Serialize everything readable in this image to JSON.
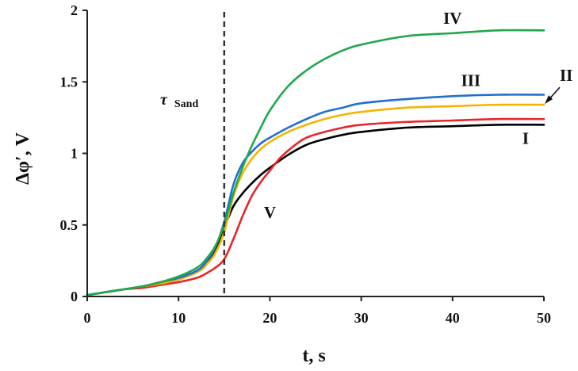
{
  "chart_data": {
    "type": "line",
    "xlabel": "t, s",
    "ylabel": "Δφ′, V",
    "xlim": [
      0,
      50
    ],
    "ylim": [
      0,
      2
    ],
    "x_ticks": [
      "0",
      "10",
      "20",
      "30",
      "40",
      "50"
    ],
    "y_ticks": [
      "0",
      "0.5",
      "1",
      "1.5",
      "2"
    ],
    "grid": false,
    "vline": {
      "x": 15,
      "label_main": "τ",
      "label_sub": "Sand",
      "style": "dashed"
    },
    "series": [
      {
        "name": "I",
        "color": "#000000",
        "x": [
          0,
          2,
          4,
          6,
          8,
          10,
          12,
          13,
          14,
          15,
          16,
          17,
          18,
          19,
          20,
          22,
          24,
          26,
          28,
          30,
          35,
          40,
          45,
          50
        ],
        "y": [
          0.01,
          0.03,
          0.05,
          0.07,
          0.09,
          0.12,
          0.17,
          0.22,
          0.32,
          0.48,
          0.63,
          0.72,
          0.79,
          0.85,
          0.9,
          0.99,
          1.06,
          1.1,
          1.13,
          1.15,
          1.18,
          1.19,
          1.2,
          1.2
        ]
      },
      {
        "name": "II",
        "color": "#f5b400",
        "x": [
          0,
          2,
          4,
          6,
          8,
          10,
          12,
          13,
          14,
          15,
          16,
          17,
          18,
          19,
          20,
          22,
          24,
          26,
          28,
          30,
          35,
          40,
          45,
          50
        ],
        "y": [
          0.01,
          0.03,
          0.05,
          0.07,
          0.09,
          0.12,
          0.17,
          0.22,
          0.3,
          0.45,
          0.7,
          0.86,
          0.96,
          1.03,
          1.08,
          1.15,
          1.2,
          1.24,
          1.27,
          1.29,
          1.32,
          1.33,
          1.34,
          1.34
        ]
      },
      {
        "name": "III",
        "color": "#1f6fd1",
        "x": [
          0,
          2,
          4,
          6,
          8,
          10,
          12,
          13,
          14,
          15,
          16,
          17,
          18,
          19,
          20,
          22,
          24,
          26,
          28,
          30,
          35,
          40,
          45,
          50
        ],
        "y": [
          0.01,
          0.03,
          0.05,
          0.07,
          0.1,
          0.13,
          0.18,
          0.24,
          0.34,
          0.52,
          0.78,
          0.93,
          1.01,
          1.07,
          1.11,
          1.18,
          1.24,
          1.29,
          1.32,
          1.35,
          1.38,
          1.4,
          1.41,
          1.41
        ]
      },
      {
        "name": "IV",
        "color": "#21a84a",
        "x": [
          0,
          2,
          4,
          6,
          8,
          10,
          12,
          13,
          14,
          15,
          16,
          17,
          18,
          19,
          20,
          22,
          24,
          26,
          28,
          30,
          35,
          40,
          45,
          50
        ],
        "y": [
          0.01,
          0.03,
          0.05,
          0.07,
          0.1,
          0.14,
          0.2,
          0.26,
          0.35,
          0.5,
          0.72,
          0.9,
          1.05,
          1.18,
          1.3,
          1.47,
          1.58,
          1.66,
          1.72,
          1.76,
          1.82,
          1.84,
          1.86,
          1.86
        ]
      },
      {
        "name": "V",
        "color": "#e8262a",
        "x": [
          0,
          2,
          4,
          6,
          8,
          10,
          12,
          13,
          14,
          15,
          16,
          17,
          18,
          19,
          20,
          21,
          22,
          23,
          24,
          26,
          28,
          30,
          35,
          40,
          45,
          50
        ],
        "y": [
          0.01,
          0.03,
          0.05,
          0.06,
          0.08,
          0.1,
          0.13,
          0.16,
          0.2,
          0.26,
          0.4,
          0.56,
          0.7,
          0.8,
          0.88,
          0.96,
          1.02,
          1.07,
          1.11,
          1.15,
          1.18,
          1.2,
          1.22,
          1.23,
          1.24,
          1.24
        ]
      }
    ],
    "annotations": [
      {
        "text": "IV",
        "series": "IV",
        "at_x": 40,
        "position": "above"
      },
      {
        "text": "III",
        "series": "III",
        "at_x": 42,
        "position": "above"
      },
      {
        "text": "II",
        "series": "II",
        "at_x": 50,
        "position": "right-arrow"
      },
      {
        "text": "I",
        "series": "I",
        "at_x": 48,
        "position": "below"
      },
      {
        "text": "V",
        "series": "V",
        "at_x": 20,
        "position": "below-left"
      }
    ]
  }
}
